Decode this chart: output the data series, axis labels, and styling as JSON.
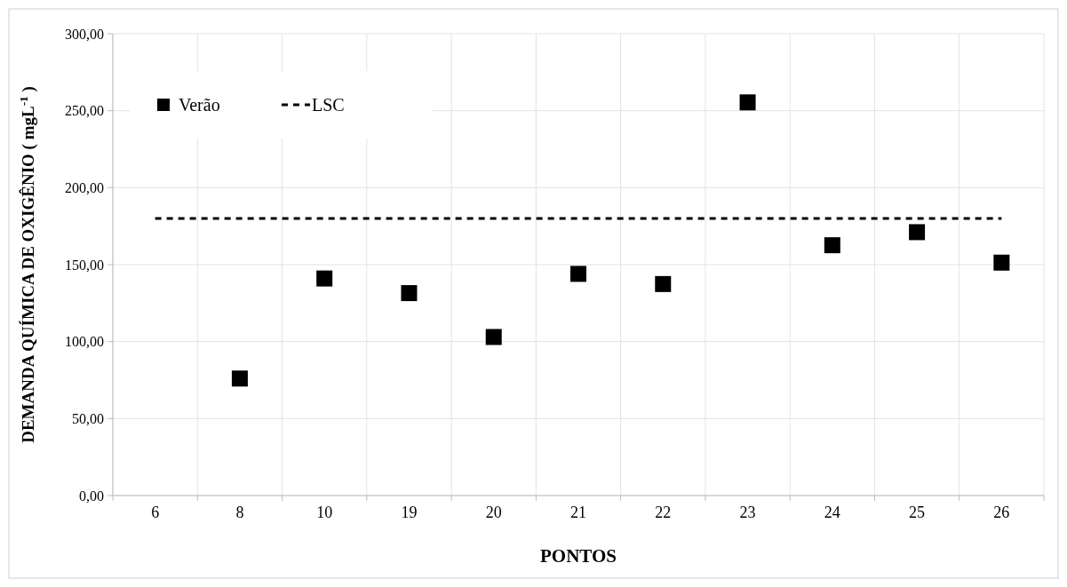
{
  "chart_data": {
    "type": "scatter",
    "xlabel": "PONTOS",
    "ylabel": "DEMANDA QUÍMICA DE OXIGÊNIO  ( mgL$^{-1}$ )",
    "categories": [
      "6",
      "8",
      "10",
      "19",
      "20",
      "21",
      "22",
      "23",
      "24",
      "25",
      "26"
    ],
    "series": [
      {
        "name": "Verão",
        "marker": "square",
        "color": "#000000",
        "values": [
          null,
          76,
          141,
          131.5,
          103,
          144,
          137.4,
          255.4,
          162.6,
          171.1,
          151.3
        ]
      },
      {
        "name": "LSC",
        "type": "line",
        "marker": "none",
        "line_style": "dashed",
        "color": "#000000",
        "values": [
          180,
          180,
          180,
          180,
          180,
          180,
          180,
          180,
          180,
          180,
          180
        ]
      }
    ],
    "ylim": [
      0,
      300
    ],
    "yticks": [
      {
        "value": 0,
        "label": "0,00"
      },
      {
        "value": 50,
        "label": "50,00"
      },
      {
        "value": 100,
        "label": "100,00"
      },
      {
        "value": 150,
        "label": "150,00"
      },
      {
        "value": 200,
        "label": "200,00"
      },
      {
        "value": 250,
        "label": "250,00"
      },
      {
        "value": 300,
        "label": "300,00"
      }
    ],
    "grid": true,
    "legend": "top left"
  }
}
